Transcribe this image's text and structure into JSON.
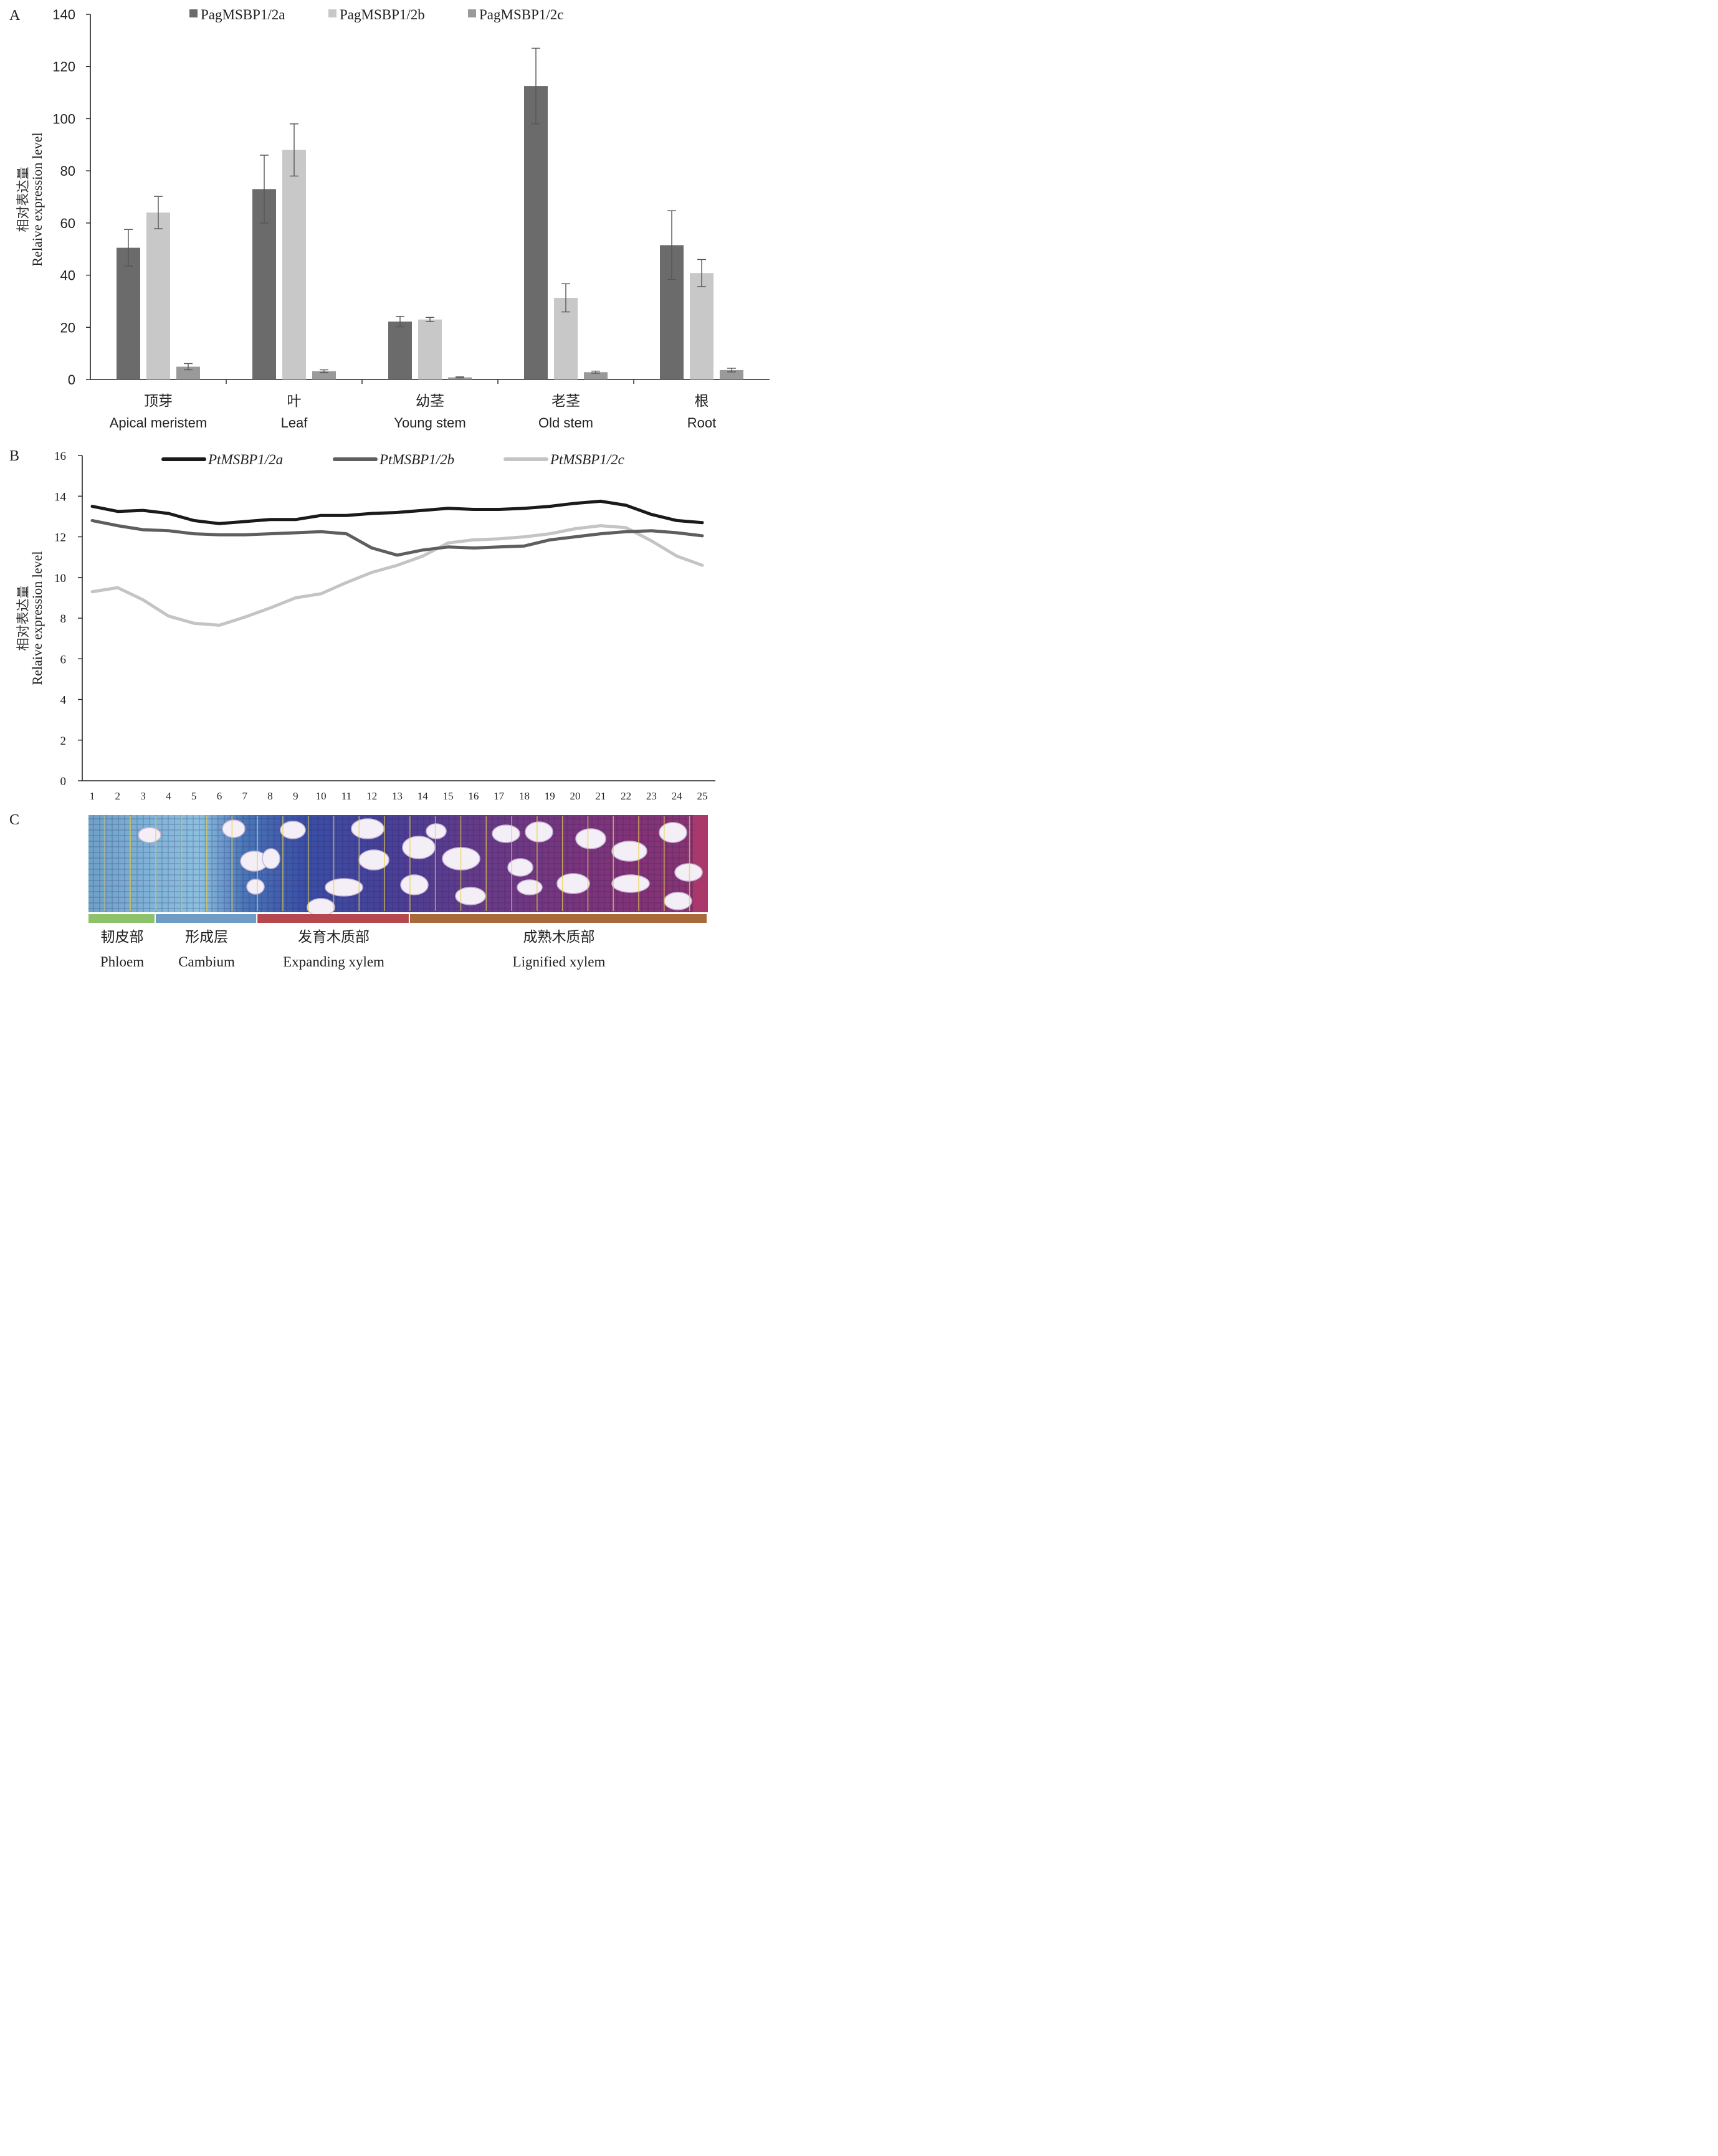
{
  "panel_a": {
    "panel_label": "A",
    "ylabel_cn": "相对表达量",
    "ylabel_en": "Relaive expression level",
    "legend": [
      {
        "name": "PagMSBP1/2a",
        "color": "#6b6b6b"
      },
      {
        "name": "PagMSBP1/2b",
        "color": "#c8c8c8"
      },
      {
        "name": "PagMSBP1/2c",
        "color": "#9a9a9a"
      }
    ]
  },
  "panel_b": {
    "panel_label": "B",
    "ylabel_cn": "相对表达量",
    "ylabel_en": "Relaive expression level",
    "legend": [
      {
        "name": "PtMSBP1/2a",
        "color": "#1a1a1a"
      },
      {
        "name": "PtMSBP1/2b",
        "color": "#5e5e5e"
      },
      {
        "name": "PtMSBP1/2c",
        "color": "#c4c4c4"
      }
    ]
  },
  "panel_c": {
    "panel_label": "C",
    "zones": [
      {
        "cn": "韧皮部",
        "en": "Phloem",
        "color": "#8dc26a",
        "from": 1,
        "to": 3
      },
      {
        "cn": "形成层",
        "en": "Cambium",
        "color": "#6f9cc4",
        "from": 4,
        "to": 7
      },
      {
        "cn": "发育木质部",
        "en": "Expanding xylem",
        "color": "#b5484f",
        "from": 8,
        "to": 13
      },
      {
        "cn": "成熟木质部",
        "en": "Lignified xylem",
        "color": "#a86a3a",
        "from": 14,
        "to": 25
      }
    ],
    "image_description": "micrograph"
  },
  "chart_data": [
    {
      "type": "bar",
      "categories": [
        "顶芽\nApical meristem",
        "叶\nLeaf",
        "幼茎\nYoung stem",
        "老茎\nOld stem",
        "根\nRoot"
      ],
      "category_cn": [
        "顶芽",
        "叶",
        "幼茎",
        "老茎",
        "根"
      ],
      "category_en": [
        "Apical meristem",
        "Leaf",
        "Young stem",
        "Old stem",
        "Root"
      ],
      "series": [
        {
          "name": "PagMSBP1/2a",
          "values": [
            50.5,
            73,
            22.2,
            112.5,
            51.5
          ],
          "errors": [
            7,
            13,
            2,
            14.5,
            13.2
          ]
        },
        {
          "name": "PagMSBP1/2b",
          "values": [
            64,
            88,
            23,
            31.3,
            40.8
          ],
          "errors": [
            6.2,
            10,
            0.8,
            5.4,
            5.2
          ]
        },
        {
          "name": "PagMSBP1/2c",
          "values": [
            4.9,
            3.2,
            0.8,
            2.8,
            3.6
          ],
          "errors": [
            1.2,
            0.5,
            0.2,
            0.4,
            0.7
          ]
        }
      ],
      "ylim": [
        0,
        140
      ],
      "yticks": [
        0,
        20,
        40,
        60,
        80,
        100,
        120,
        140
      ],
      "ylabel": "相对表达量 Relaive expression level",
      "legend_position": "top",
      "grid": false
    },
    {
      "type": "line",
      "x": [
        1,
        2,
        3,
        4,
        5,
        6,
        7,
        8,
        9,
        10,
        11,
        12,
        13,
        14,
        15,
        16,
        17,
        18,
        19,
        20,
        21,
        22,
        23,
        24,
        25
      ],
      "series": [
        {
          "name": "PtMSBP1/2a",
          "values": [
            13.5,
            13.25,
            13.3,
            13.15,
            12.8,
            12.65,
            12.75,
            12.85,
            12.85,
            13.05,
            13.05,
            13.15,
            13.2,
            13.3,
            13.4,
            13.35,
            13.35,
            13.4,
            13.5,
            13.65,
            13.75,
            13.55,
            13.1,
            12.8,
            12.7
          ]
        },
        {
          "name": "PtMSBP1/2b",
          "values": [
            12.8,
            12.55,
            12.35,
            12.3,
            12.15,
            12.1,
            12.1,
            12.15,
            12.2,
            12.25,
            12.15,
            11.45,
            11.1,
            11.35,
            11.5,
            11.45,
            11.5,
            11.55,
            11.85,
            12.0,
            12.15,
            12.25,
            12.3,
            12.2,
            12.05
          ]
        },
        {
          "name": "PtMSBP1/2c",
          "values": [
            9.3,
            9.5,
            8.9,
            8.1,
            7.75,
            7.65,
            8.05,
            8.5,
            9.0,
            9.2,
            9.75,
            10.25,
            10.6,
            11.05,
            11.7,
            11.85,
            11.9,
            12.0,
            12.15,
            12.4,
            12.55,
            12.45,
            11.8,
            11.05,
            10.6
          ]
        }
      ],
      "ylim": [
        0,
        16
      ],
      "yticks": [
        0,
        2,
        4,
        6,
        8,
        10,
        12,
        14,
        16
      ],
      "ylabel": "相对表达量 Relaive expression level",
      "legend_position": "top",
      "grid": false
    }
  ]
}
